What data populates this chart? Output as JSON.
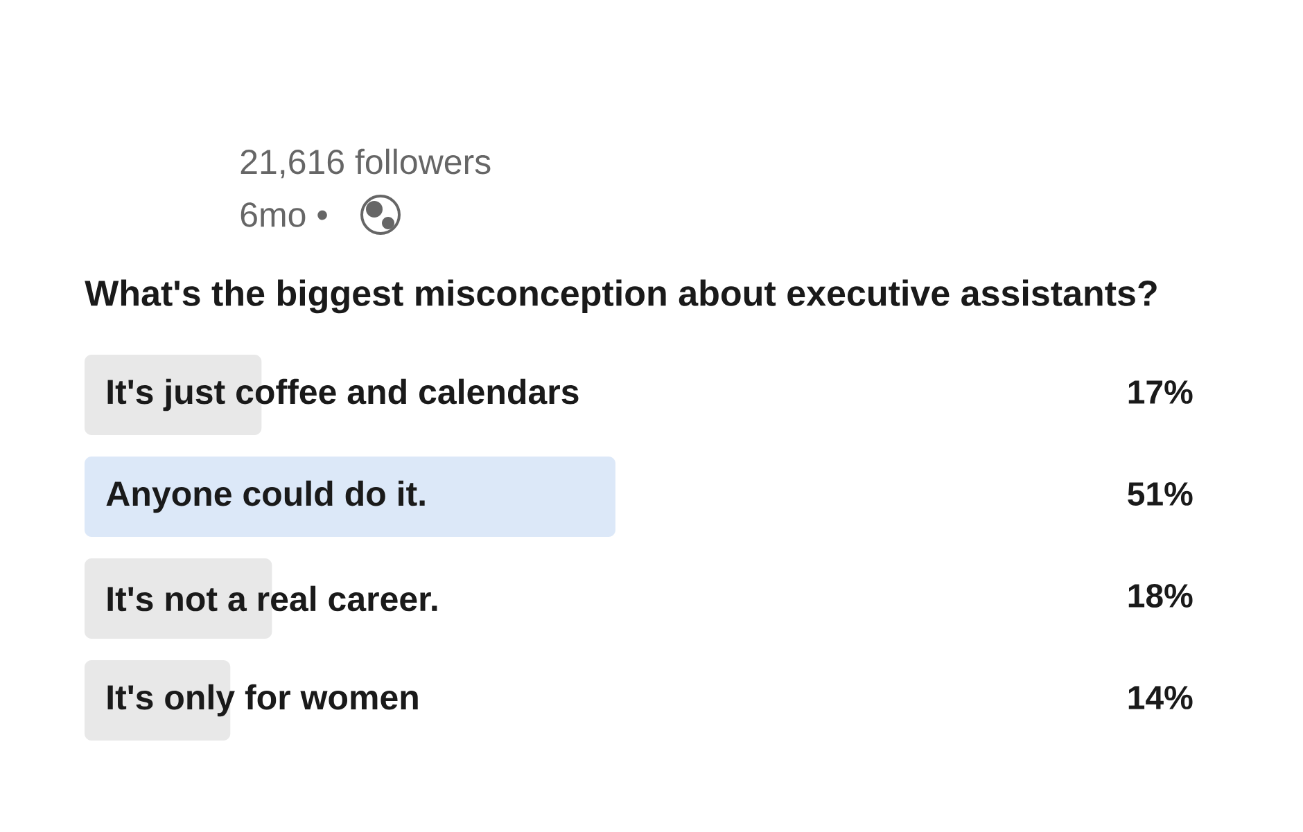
{
  "chart_data": {
    "type": "bar",
    "orientation": "horizontal",
    "title": "What's the biggest misconception about executive assistants?",
    "annotations": [
      "21,616 followers",
      "6mo •"
    ],
    "categories": [
      "It's just coffee and calendars",
      "Anyone could do it.",
      "It's not a real career.",
      "It's only for women"
    ],
    "values": [
      17,
      51,
      18,
      14
    ],
    "colors": [
      "#e8e8e8",
      "#dce8f8",
      "#e8e8e8",
      "#e8e8e8"
    ],
    "value_labels": [
      "17%",
      "51%",
      "18%",
      "14%"
    ]
  }
}
